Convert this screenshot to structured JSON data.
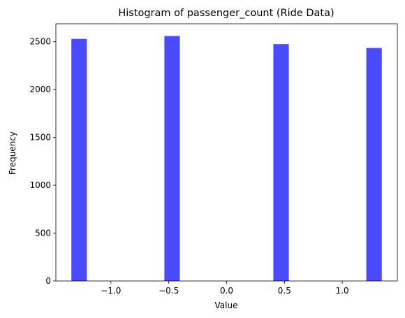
{
  "chart_data": {
    "type": "bar",
    "title": "Histogram of passenger_count (Ride Data)",
    "xlabel": "Value",
    "ylabel": "Frequency",
    "bin_ranges": [
      [
        -1.342,
        -1.208
      ],
      [
        -0.538,
        -0.404
      ],
      [
        0.404,
        0.538
      ],
      [
        1.208,
        1.342
      ]
    ],
    "values": [
      2530,
      2560,
      2475,
      2435
    ],
    "xlim": [
      -1.476,
      1.476
    ],
    "ylim": [
      0,
      2688
    ],
    "x_ticks": [
      -1.0,
      -0.5,
      0.0,
      0.5,
      1.0
    ],
    "x_tick_labels": [
      "−1.0",
      "−0.5",
      "0.0",
      "0.5",
      "1.0"
    ],
    "y_ticks": [
      0,
      500,
      1000,
      1500,
      2000,
      2500
    ],
    "y_tick_labels": [
      "0",
      "500",
      "1000",
      "1500",
      "2000",
      "2500"
    ],
    "bar_color": "#4a4aff",
    "grid": false,
    "legend": "none"
  }
}
